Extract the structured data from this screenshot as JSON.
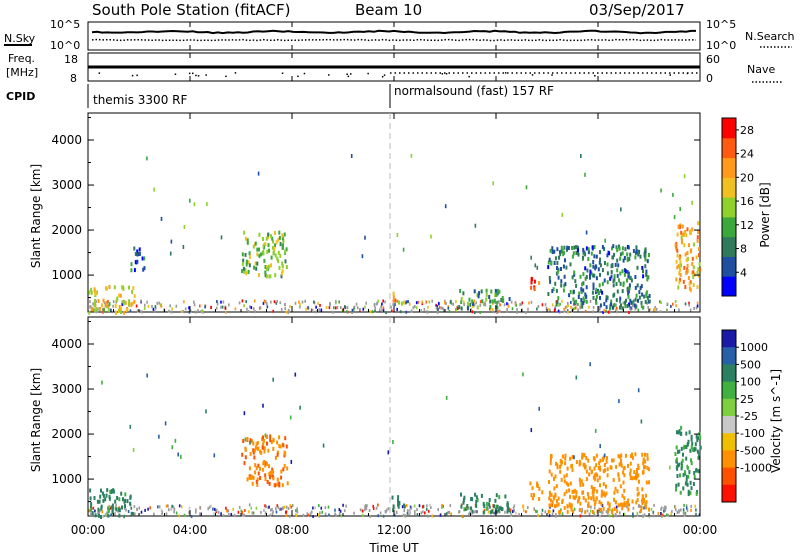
{
  "header": {
    "station": "South Pole Station (fitACF)",
    "beam": "Beam 10",
    "date": "03/Sep/2017"
  },
  "noise_panel": {
    "left_label": "N.Sky",
    "right_label": "N.Search",
    "left_ticks": [
      "10^5",
      "10^0"
    ],
    "right_ticks": [
      "10^5",
      "10^0"
    ]
  },
  "freq_panel": {
    "left_label_1": "Freq.",
    "left_label_2": "[MHz]",
    "right_label": "Nave",
    "left_ticks": [
      "18",
      "8"
    ],
    "right_ticks": [
      "60",
      "0"
    ]
  },
  "cpid_panel": {
    "label": "CPID",
    "segments": [
      {
        "start_hour": 0,
        "name": "themis 3300 RF"
      },
      {
        "start_hour": 12,
        "name": "normalsound (fast) 157 RF"
      }
    ]
  },
  "colors": {
    "power_scale": [
      "#0000ff",
      "#1f4fa0",
      "#2f7a5a",
      "#3ca83c",
      "#8fd02a",
      "#f0c020",
      "#ff9a1a",
      "#ff5a10",
      "#ff0000"
    ],
    "velocity_scale": [
      "#1a1aa8",
      "#2860a8",
      "#2a8060",
      "#40b040",
      "#7fd040",
      "#c8c8c8",
      "#f0c000",
      "#ff9000",
      "#ff5000",
      "#ff1000"
    ],
    "ground_scatter": "#9a9a9a"
  },
  "chart_data": [
    {
      "type": "heatmap",
      "panel": "power",
      "xlabel": "Time UT",
      "ylabel": "Slant Range [km]",
      "x_ticks": [
        "00:00",
        "04:00",
        "08:00",
        "12:00",
        "16:00",
        "20:00",
        "00:00"
      ],
      "x_hours": [
        0,
        4,
        8,
        12,
        16,
        20,
        24
      ],
      "y_ticks": [
        1000,
        2000,
        3000,
        4000
      ],
      "ylim": [
        180,
        4600
      ],
      "colorbar_label": "Power [dB]",
      "colorbar_ticks": [
        "4",
        "8",
        "12",
        "16",
        "20",
        "24",
        "28"
      ],
      "colorbar_range": [
        0,
        30
      ],
      "regions": [
        {
          "hour": [
            0.0,
            1.8
          ],
          "range": [
            200,
            800
          ],
          "value": 18
        },
        {
          "hour": [
            1.6,
            2.2
          ],
          "range": [
            1150,
            1650
          ],
          "value": 6
        },
        {
          "hour": [
            6.0,
            7.8
          ],
          "range": [
            1000,
            2000
          ],
          "value": 14
        },
        {
          "hour": [
            11.9,
            12.4
          ],
          "range": [
            400,
            700
          ],
          "value": 20
        },
        {
          "hour": [
            14.5,
            16.5
          ],
          "range": [
            300,
            700
          ],
          "value": 10
        },
        {
          "hour": [
            17.3,
            17.8
          ],
          "range": [
            700,
            1000
          ],
          "value": 26
        },
        {
          "hour": [
            18.0,
            22.0
          ],
          "range": [
            300,
            1700
          ],
          "value": 8
        },
        {
          "hour": [
            23.0,
            24.0
          ],
          "range": [
            700,
            2200
          ],
          "value": 20
        }
      ]
    },
    {
      "type": "heatmap",
      "panel": "velocity",
      "xlabel": "Time UT",
      "ylabel": "Slant Range [km]",
      "x_ticks": [
        "00:00",
        "04:00",
        "08:00",
        "12:00",
        "16:00",
        "20:00",
        "00:00"
      ],
      "x_hours": [
        0,
        4,
        8,
        12,
        16,
        20,
        24
      ],
      "y_ticks": [
        1000,
        2000,
        3000,
        4000
      ],
      "ylim": [
        180,
        4600
      ],
      "colorbar_label": "Velocity [m s^-1]",
      "colorbar_ticks": [
        "1000",
        "500",
        "100",
        "25",
        "-25",
        "-100",
        "-500",
        "-1000"
      ],
      "regions": [
        {
          "hour": [
            0.0,
            1.8
          ],
          "range": [
            200,
            800
          ],
          "value": 200
        },
        {
          "hour": [
            6.0,
            7.8
          ],
          "range": [
            900,
            2000
          ],
          "value": -400
        },
        {
          "hour": [
            11.9,
            12.4
          ],
          "range": [
            300,
            700
          ],
          "value": 300
        },
        {
          "hour": [
            14.5,
            16.5
          ],
          "range": [
            300,
            700
          ],
          "value": 200
        },
        {
          "hour": [
            17.3,
            17.8
          ],
          "range": [
            600,
            1000
          ],
          "value": -300
        },
        {
          "hour": [
            18.0,
            22.0
          ],
          "range": [
            300,
            1600
          ],
          "value": -250
        },
        {
          "hour": [
            23.0,
            24.0
          ],
          "range": [
            700,
            2200
          ],
          "value": 150
        }
      ]
    }
  ]
}
